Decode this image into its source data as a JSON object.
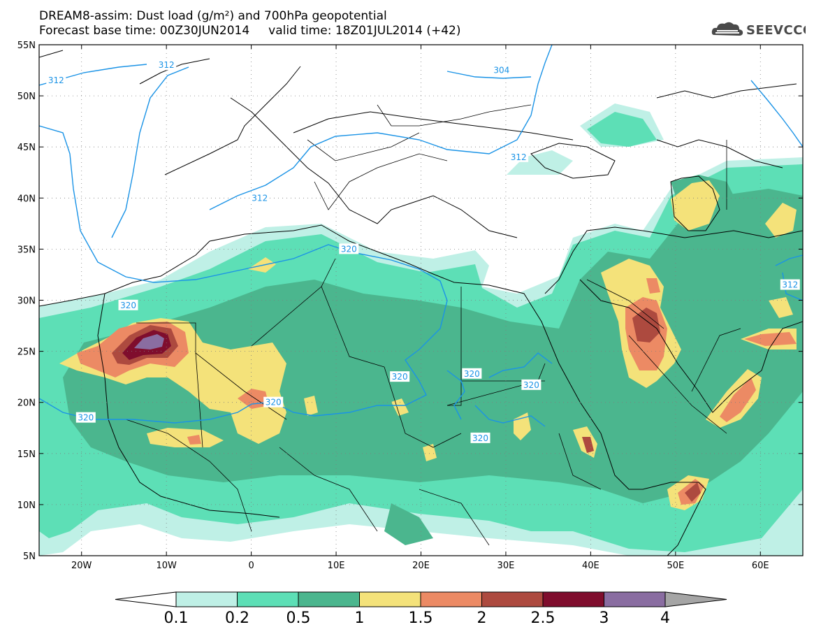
{
  "header": {
    "title_line1": "DREAM8-assim: Dust load (g/m²) and 700hPa geopotential",
    "title_line2": "Forecast base time: 00Z30JUN2014     valid time: 18Z01JUL2014 (+42)",
    "logo_text": "SEEVCCC"
  },
  "map": {
    "lat_labels": [
      "55N",
      "50N",
      "45N",
      "40N",
      "35N",
      "30N",
      "25N",
      "20N",
      "15N",
      "10N",
      "5N"
    ],
    "lon_labels": [
      "20W",
      "10W",
      "0",
      "10E",
      "20E",
      "30E",
      "40E",
      "50E",
      "60E"
    ],
    "extent": {
      "lon_min": -25,
      "lon_max": 65,
      "lat_min": 5,
      "lat_max": 55
    },
    "contour_labels": [
      {
        "text": "312",
        "lon": -23,
        "lat": 51.5
      },
      {
        "text": "312",
        "lon": -10,
        "lat": 53
      },
      {
        "text": "304",
        "lon": 29.5,
        "lat": 52.5
      },
      {
        "text": "312",
        "lon": 1,
        "lat": 40
      },
      {
        "text": "312",
        "lon": 31.5,
        "lat": 44
      },
      {
        "text": "312",
        "lon": 63.5,
        "lat": 31.5
      },
      {
        "text": "320",
        "lon": -14.5,
        "lat": 29.5
      },
      {
        "text": "320",
        "lon": 11.5,
        "lat": 35
      },
      {
        "text": "320",
        "lon": 17.5,
        "lat": 22.5
      },
      {
        "text": "320",
        "lon": 26,
        "lat": 22.8
      },
      {
        "text": "320",
        "lon": 33,
        "lat": 21.7
      },
      {
        "text": "320",
        "lon": 27,
        "lat": 16.5
      },
      {
        "text": "320",
        "lon": 2.6,
        "lat": 20
      },
      {
        "text": "320",
        "lon": -19.5,
        "lat": 18.5
      }
    ],
    "colors": {
      "c01": "#bff0e6",
      "c02": "#5ddfb6",
      "c05": "#4bb68e",
      "c1": "#f4e27a",
      "c15": "#ec8a64",
      "c2": "#ad4a3f",
      "c25": "#7f0d2d",
      "c3": "#8a6da1",
      "c4": "#a5a5a5",
      "contour": "#1a93e6"
    }
  },
  "colorbar": {
    "labels": [
      "0.1",
      "0.2",
      "0.5",
      "1",
      "1.5",
      "2",
      "2.5",
      "3",
      "4"
    ],
    "colors": [
      "#bff0e6",
      "#5ddfb6",
      "#4bb68e",
      "#f4e27a",
      "#ec8a64",
      "#ad4a3f",
      "#7f0d2d",
      "#8a6da1"
    ],
    "over_color": "#a5a5a5",
    "under_color": "#ffffff"
  }
}
